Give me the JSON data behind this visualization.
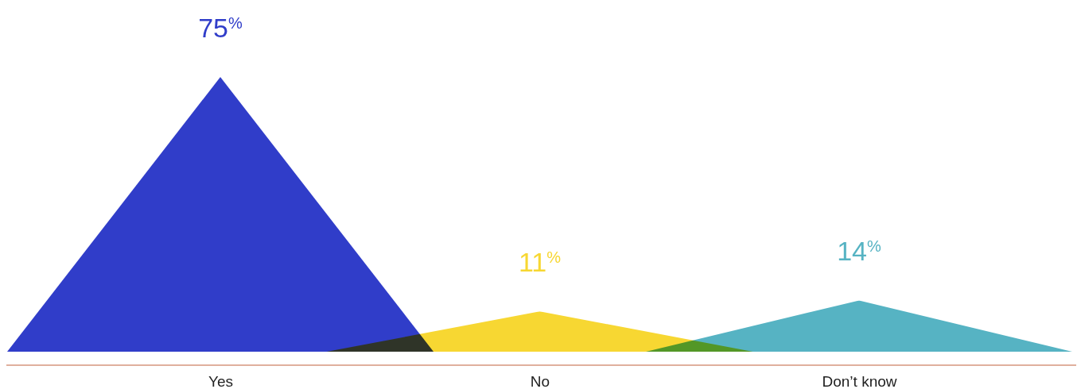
{
  "chart_data": {
    "type": "bar",
    "categories": [
      "Yes",
      "No",
      "Don’t know"
    ],
    "values": [
      75,
      11,
      14
    ],
    "colors": [
      "#303dc9",
      "#f7d732",
      "#56b3c3"
    ],
    "value_labels": [
      "75$^{%}$",
      "11$^{%}$",
      "14$^{%}$"
    ]
  }
}
